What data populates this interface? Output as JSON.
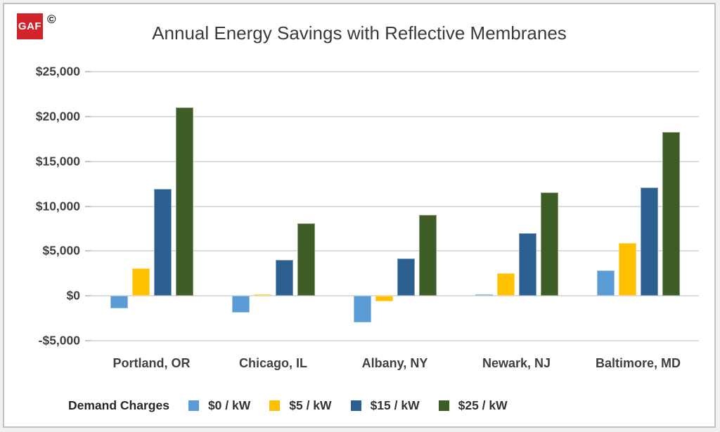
{
  "logo": {
    "brand": "GAF",
    "brand_bg_color": "#D2232A",
    "copyright_symbol": "©"
  },
  "chart_data": {
    "type": "bar",
    "title": "Annual Energy Savings with Reflective Membranes",
    "categories": [
      "Portland, OR",
      "Chicago, IL",
      "Albany, NY",
      "Newark, NJ",
      "Baltimore, MD"
    ],
    "series": [
      {
        "name": "$0 / kW",
        "color": "#5B9BD5",
        "values": [
          -1400,
          -1900,
          -3000,
          200,
          2800
        ]
      },
      {
        "name": "$5 / kW",
        "color": "#FFC000",
        "values": [
          3100,
          200,
          -600,
          2500,
          5900
        ]
      },
      {
        "name": "$15 / kW",
        "color": "#2A5F8F",
        "values": [
          11900,
          4000,
          4200,
          7000,
          12100
        ]
      },
      {
        "name": "$25 / kW",
        "color": "#3D5C26",
        "values": [
          21000,
          8100,
          9000,
          11500,
          18300
        ]
      }
    ],
    "legend_title": "Demand Charges",
    "legend_position": "bottom",
    "xlabel": "",
    "ylabel": "",
    "ylim": [
      -5000,
      25000
    ],
    "ytick_interval": 5000,
    "ytick_labels": [
      "$25,000",
      "$20,000",
      "$15,000",
      "$10,000",
      "$5,000",
      "$0",
      "-$5,000"
    ],
    "grid": true,
    "axis_text_color": "#404040",
    "gridline_color": "#dcdcdc"
  }
}
